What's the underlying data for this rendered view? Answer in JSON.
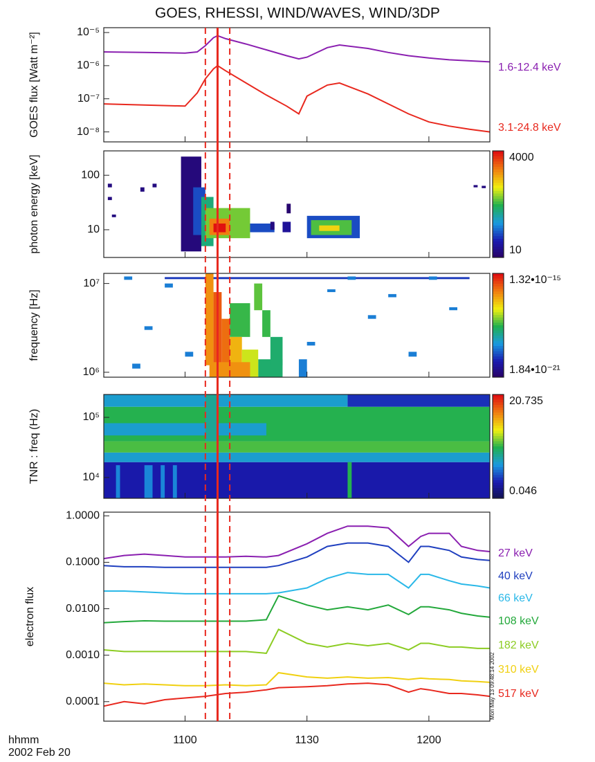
{
  "title": "GOES, RHESSI, WIND/WAVES, WIND/3DP",
  "x_label": "hhmm",
  "date": "2002 Feb 20",
  "timestamp": "Mon May 13 09:48:14 2002",
  "markers": {
    "dashed": [
      665,
      671
    ],
    "solid": [
      668
    ],
    "color": "#e8281e"
  },
  "chart_data": [
    {
      "type": "line",
      "y_label": "GOES flux [Watt m⁻²]",
      "log_y": true,
      "xlim": [
        640,
        735
      ],
      "ylim": [
        5e-09,
        1.4e-05
      ],
      "yticks": [
        {
          "value": 1e-05,
          "label": "10⁻⁵"
        },
        {
          "value": 1e-06,
          "label": "10⁻⁶"
        },
        {
          "value": 1e-07,
          "label": "10⁻⁷"
        },
        {
          "value": 1e-08,
          "label": "10⁻⁸"
        }
      ],
      "x": [
        640,
        650,
        660,
        663,
        665,
        667,
        668,
        670,
        675,
        680,
        685,
        688,
        690,
        695,
        698,
        705,
        710,
        715,
        720,
        725,
        730,
        735
      ],
      "series": [
        {
          "name": "1.6-12.4 keV",
          "color": "#8a1fb0",
          "values": [
            2.6e-06,
            2.5e-06,
            2.4e-06,
            2.6e-06,
            4e-06,
            7e-06,
            8e-06,
            6.5e-06,
            4.5e-06,
            3e-06,
            2e-06,
            1.6e-06,
            1.8e-06,
            3.5e-06,
            4.2e-06,
            3.3e-06,
            2.5e-06,
            2e-06,
            1.7e-06,
            1.5e-06,
            1.4e-06,
            1.3e-06
          ]
        },
        {
          "name": "3.1-24.8 keV",
          "color": "#e8281e",
          "values": [
            7e-08,
            6.5e-08,
            6e-08,
            1.5e-07,
            4e-07,
            8e-07,
            1e-06,
            7e-07,
            3e-07,
            1.3e-07,
            6e-08,
            3.5e-08,
            1.2e-07,
            2.6e-07,
            3e-07,
            1.4e-07,
            7e-08,
            3.5e-08,
            2e-08,
            1.5e-08,
            1.2e-08,
            1e-08
          ]
        }
      ]
    },
    {
      "type": "heatmap",
      "y_label": "photon energy [keV]",
      "log_y": true,
      "xlim": [
        640,
        735
      ],
      "ylim": [
        3.1,
        280
      ],
      "yticks": [
        100,
        10
      ],
      "clim": [
        10,
        4000
      ],
      "cticks": [
        4000,
        10
      ],
      "colormap": [
        "#2a0060",
        "#1a1ab0",
        "#1a9ae0",
        "#20b050",
        "#f0f010",
        "#f08010",
        "#e01010"
      ],
      "cells": [
        {
          "x": [
            659,
            664
          ],
          "y": [
            4,
            220
          ],
          "value": 14
        },
        {
          "x": [
            662,
            665
          ],
          "y": [
            8,
            60
          ],
          "value": 40
        },
        {
          "x": [
            664,
            667
          ],
          "y": [
            5,
            40
          ],
          "value": 150
        },
        {
          "x": [
            665,
            676
          ],
          "y": [
            7,
            25
          ],
          "value": 300
        },
        {
          "x": [
            666,
            671
          ],
          "y": [
            8,
            16
          ],
          "value": 1500
        },
        {
          "x": [
            667,
            670
          ],
          "y": [
            9,
            13
          ],
          "value": 4000
        },
        {
          "x": [
            676,
            682
          ],
          "y": [
            9,
            13
          ],
          "value": 40
        },
        {
          "x": [
            681,
            682
          ],
          "y": [
            10,
            14
          ],
          "value": 15
        },
        {
          "x": [
            684,
            686
          ],
          "y": [
            9,
            14
          ],
          "value": 20
        },
        {
          "x": [
            685,
            686
          ],
          "y": [
            20,
            30
          ],
          "value": 12
        },
        {
          "x": [
            690,
            703
          ],
          "y": [
            7,
            18
          ],
          "value": 40
        },
        {
          "x": [
            691,
            701
          ],
          "y": [
            8,
            15
          ],
          "value": 250
        },
        {
          "x": [
            693,
            698
          ],
          "y": [
            9.5,
            12
          ],
          "value": 700
        },
        {
          "x": [
            641,
            642
          ],
          "y": [
            60,
            70
          ],
          "value": 15
        },
        {
          "x": [
            649,
            650
          ],
          "y": [
            50,
            60
          ],
          "value": 15
        },
        {
          "x": [
            652,
            653
          ],
          "y": [
            60,
            70
          ],
          "value": 15
        },
        {
          "x": [
            641,
            642
          ],
          "y": [
            35,
            40
          ],
          "value": 15
        },
        {
          "x": [
            642,
            643
          ],
          "y": [
            17,
            19
          ],
          "value": 15
        },
        {
          "x": [
            731,
            732
          ],
          "y": [
            60,
            66
          ],
          "value": 15
        },
        {
          "x": [
            733,
            734
          ],
          "y": [
            58,
            64
          ],
          "value": 15
        }
      ]
    },
    {
      "type": "heatmap",
      "y_label": "frequency [Hz]",
      "log_y": true,
      "xlim": [
        640,
        735
      ],
      "ylim": [
        880000,
        13000000
      ],
      "yticks": [
        {
          "value": 10000000,
          "label": "10⁷"
        },
        {
          "value": 1000000,
          "label": "10⁶"
        }
      ],
      "clim": [
        1.84e-21,
        1.32e-15
      ],
      "cticks": [
        {
          "value": 1.32e-15,
          "label": "1.32•10⁻¹⁵"
        },
        {
          "value": 1.84e-21,
          "label": "1.84•10⁻²¹"
        }
      ],
      "colormap": [
        "#2a0060",
        "#1a1ab0",
        "#1a9ae0",
        "#20b050",
        "#f0f010",
        "#f08010",
        "#e01010"
      ],
      "cells": [
        {
          "x": [
            655,
            730
          ],
          "y": [
            11200000,
            11800000
          ],
          "value": 3e-20
        },
        {
          "x": [
            645,
            647
          ],
          "y": [
            11000000,
            12000000
          ],
          "value": 1e-19
        },
        {
          "x": [
            655,
            657
          ],
          "y": [
            9000000,
            10000000
          ],
          "value": 1e-19
        },
        {
          "x": [
            700,
            702
          ],
          "y": [
            11000000,
            12000000
          ],
          "value": 1e-19
        },
        {
          "x": [
            710,
            712
          ],
          "y": [
            7000000,
            7600000
          ],
          "value": 1e-19
        },
        {
          "x": [
            650,
            652
          ],
          "y": [
            3000000,
            3300000
          ],
          "value": 1e-19
        },
        {
          "x": [
            660,
            662
          ],
          "y": [
            1500000,
            1700000
          ],
          "value": 1e-19
        },
        {
          "x": [
            690,
            692
          ],
          "y": [
            2000000,
            2200000
          ],
          "value": 1e-19
        },
        {
          "x": [
            720,
            722
          ],
          "y": [
            11000000,
            12000000
          ],
          "value": 1e-19
        },
        {
          "x": [
            705,
            707
          ],
          "y": [
            4000000,
            4400000
          ],
          "value": 1e-19
        },
        {
          "x": [
            647,
            649
          ],
          "y": [
            1100000,
            1250000
          ],
          "value": 1e-19
        },
        {
          "x": [
            715,
            717
          ],
          "y": [
            1500000,
            1700000
          ],
          "value": 1e-19
        },
        {
          "x": [
            725,
            727
          ],
          "y": [
            5000000,
            5400000
          ],
          "value": 1e-19
        },
        {
          "x": [
            695,
            697
          ],
          "y": [
            8000000,
            8600000
          ],
          "value": 1e-19
        },
        {
          "x": [
            688,
            690
          ],
          "y": [
            880000,
            1400000
          ],
          "value": 1e-19
        },
        {
          "x": [
            678,
            684
          ],
          "y": [
            880000,
            1400000
          ],
          "value": 1e-18
        },
        {
          "x": [
            671,
            676
          ],
          "y": [
            2500000,
            6000000
          ],
          "value": 2e-18
        },
        {
          "x": [
            665,
            667
          ],
          "y": [
            1200000,
            13000000
          ],
          "value": 1e-16
        },
        {
          "x": [
            667,
            669
          ],
          "y": [
            880000,
            8000000
          ],
          "value": 3e-16
        },
        {
          "x": [
            669,
            671
          ],
          "y": [
            880000,
            4000000
          ],
          "value": 2e-16
        },
        {
          "x": [
            671,
            674
          ],
          "y": [
            880000,
            2500000
          ],
          "value": 5e-17
        },
        {
          "x": [
            674,
            678
          ],
          "y": [
            880000,
            1800000
          ],
          "value": 1e-17
        },
        {
          "x": [
            666,
            676
          ],
          "y": [
            880000,
            1300000
          ],
          "value": 1e-16
        },
        {
          "x": [
            677,
            679
          ],
          "y": [
            5000000,
            10000000
          ],
          "value": 3e-18
        },
        {
          "x": [
            679,
            681
          ],
          "y": [
            2500000,
            5000000
          ],
          "value": 2e-18
        },
        {
          "x": [
            681,
            684
          ],
          "y": [
            1200000,
            2500000
          ],
          "value": 1e-18
        }
      ]
    },
    {
      "type": "heatmap",
      "y_label": "TNR : freq (Hz)",
      "log_y": true,
      "xlim": [
        640,
        735
      ],
      "ylim": [
        4500,
        240000
      ],
      "yticks": [
        {
          "value": 100000,
          "label": "10⁵"
        },
        {
          "value": 10000,
          "label": "10⁴"
        }
      ],
      "clim": [
        0.046,
        20.735
      ],
      "cticks": [
        20.735,
        0.046
      ],
      "colormap": [
        "#10104a",
        "#1a1ab0",
        "#1a9ae0",
        "#20b050",
        "#f0f010",
        "#f08010",
        "#e01010"
      ],
      "cells": [
        {
          "x": [
            640,
            735
          ],
          "y": [
            4500,
            18000
          ],
          "value": 0.12
        },
        {
          "x": [
            640,
            735
          ],
          "y": [
            18000,
            26000
          ],
          "value": 0.4
        },
        {
          "x": [
            640,
            735
          ],
          "y": [
            26000,
            40000
          ],
          "value": 1.2
        },
        {
          "x": [
            640,
            735
          ],
          "y": [
            40000,
            150000
          ],
          "value": 1
        },
        {
          "x": [
            640,
            700
          ],
          "y": [
            150000,
            240000
          ],
          "value": 0.4
        },
        {
          "x": [
            700,
            735
          ],
          "y": [
            150000,
            240000
          ],
          "value": 0.15
        },
        {
          "x": [
            640,
            680
          ],
          "y": [
            50000,
            80000
          ],
          "value": 0.4
        },
        {
          "x": [
            665,
            668
          ],
          "y": [
            40000,
            240000
          ],
          "value": 0.6
        },
        {
          "x": [
            643,
            644
          ],
          "y": [
            4500,
            16000
          ],
          "value": 0.3
        },
        {
          "x": [
            650,
            652
          ],
          "y": [
            4500,
            16000
          ],
          "value": 0.3
        },
        {
          "x": [
            654,
            655
          ],
          "y": [
            4500,
            16000
          ],
          "value": 0.3
        },
        {
          "x": [
            657,
            658
          ],
          "y": [
            4500,
            16000
          ],
          "value": 0.3
        },
        {
          "x": [
            700,
            701
          ],
          "y": [
            4500,
            18000
          ],
          "value": 1
        }
      ]
    },
    {
      "type": "line",
      "y_label": "electron flux",
      "log_y": true,
      "xlim": [
        640,
        735
      ],
      "ylim": [
        3.8e-05,
        1.2
      ],
      "yticks": [
        {
          "value": 1,
          "label": "1.0000"
        },
        {
          "value": 0.1,
          "label": "0.1000"
        },
        {
          "value": 0.01,
          "label": "0.0100"
        },
        {
          "value": 0.001,
          "label": "0.0010"
        },
        {
          "value": 0.0001,
          "label": "0.0001"
        }
      ],
      "xticks": [
        {
          "value": 660,
          "label": "1100"
        },
        {
          "value": 690,
          "label": "1130"
        },
        {
          "value": 720,
          "label": "1200"
        }
      ],
      "x": [
        640,
        645,
        650,
        655,
        660,
        665,
        670,
        675,
        680,
        683,
        690,
        695,
        700,
        705,
        710,
        715,
        718,
        720,
        725,
        728,
        732,
        735
      ],
      "series": [
        {
          "name": "27 keV",
          "color": "#8a1fb0",
          "values": [
            0.12,
            0.14,
            0.15,
            0.14,
            0.13,
            0.13,
            0.13,
            0.135,
            0.13,
            0.14,
            0.25,
            0.42,
            0.6,
            0.6,
            0.55,
            0.22,
            0.36,
            0.42,
            0.42,
            0.22,
            0.18,
            0.17
          ]
        },
        {
          "name": "40 keV",
          "color": "#1f3fbf",
          "values": [
            0.085,
            0.08,
            0.08,
            0.078,
            0.078,
            0.078,
            0.078,
            0.078,
            0.078,
            0.085,
            0.13,
            0.22,
            0.26,
            0.26,
            0.22,
            0.1,
            0.22,
            0.22,
            0.18,
            0.13,
            0.115,
            0.11
          ]
        },
        {
          "name": "66 keV",
          "color": "#2ab8e8",
          "values": [
            0.024,
            0.024,
            0.023,
            0.022,
            0.021,
            0.021,
            0.021,
            0.021,
            0.021,
            0.022,
            0.028,
            0.045,
            0.06,
            0.055,
            0.055,
            0.028,
            0.055,
            0.055,
            0.04,
            0.034,
            0.031,
            0.028
          ]
        },
        {
          "name": "108 keV",
          "color": "#22a83a",
          "values": [
            0.005,
            0.0053,
            0.0055,
            0.0054,
            0.0054,
            0.0054,
            0.0054,
            0.0054,
            0.0058,
            0.019,
            0.012,
            0.0095,
            0.011,
            0.0095,
            0.012,
            0.0075,
            0.011,
            0.011,
            0.0095,
            0.008,
            0.007,
            0.0066
          ]
        },
        {
          "name": "182 keV",
          "color": "#8ccc22",
          "values": [
            0.0013,
            0.0012,
            0.0012,
            0.0012,
            0.0012,
            0.0012,
            0.0012,
            0.0012,
            0.0011,
            0.0036,
            0.0018,
            0.0015,
            0.0018,
            0.0016,
            0.0018,
            0.0013,
            0.0018,
            0.0018,
            0.0015,
            0.0015,
            0.0014,
            0.0014
          ]
        },
        {
          "name": "310 keV",
          "color": "#f0d010",
          "values": [
            0.00025,
            0.00023,
            0.00024,
            0.00023,
            0.00022,
            0.00022,
            0.00023,
            0.00022,
            0.00023,
            0.00042,
            0.00034,
            0.00032,
            0.00034,
            0.00032,
            0.00033,
            0.0003,
            0.00032,
            0.00031,
            0.0003,
            0.00028,
            0.00027,
            0.00026
          ]
        },
        {
          "name": "517 keV",
          "color": "#e8281e",
          "values": [
            8e-05,
            0.0001,
            9e-05,
            0.00011,
            0.00012,
            0.00013,
            0.00015,
            0.00016,
            0.00018,
            0.0002,
            0.00021,
            0.00022,
            0.00024,
            0.00025,
            0.00023,
            0.00016,
            0.00019,
            0.00018,
            0.00015,
            0.00015,
            0.00014,
            0.00013
          ]
        }
      ]
    }
  ]
}
